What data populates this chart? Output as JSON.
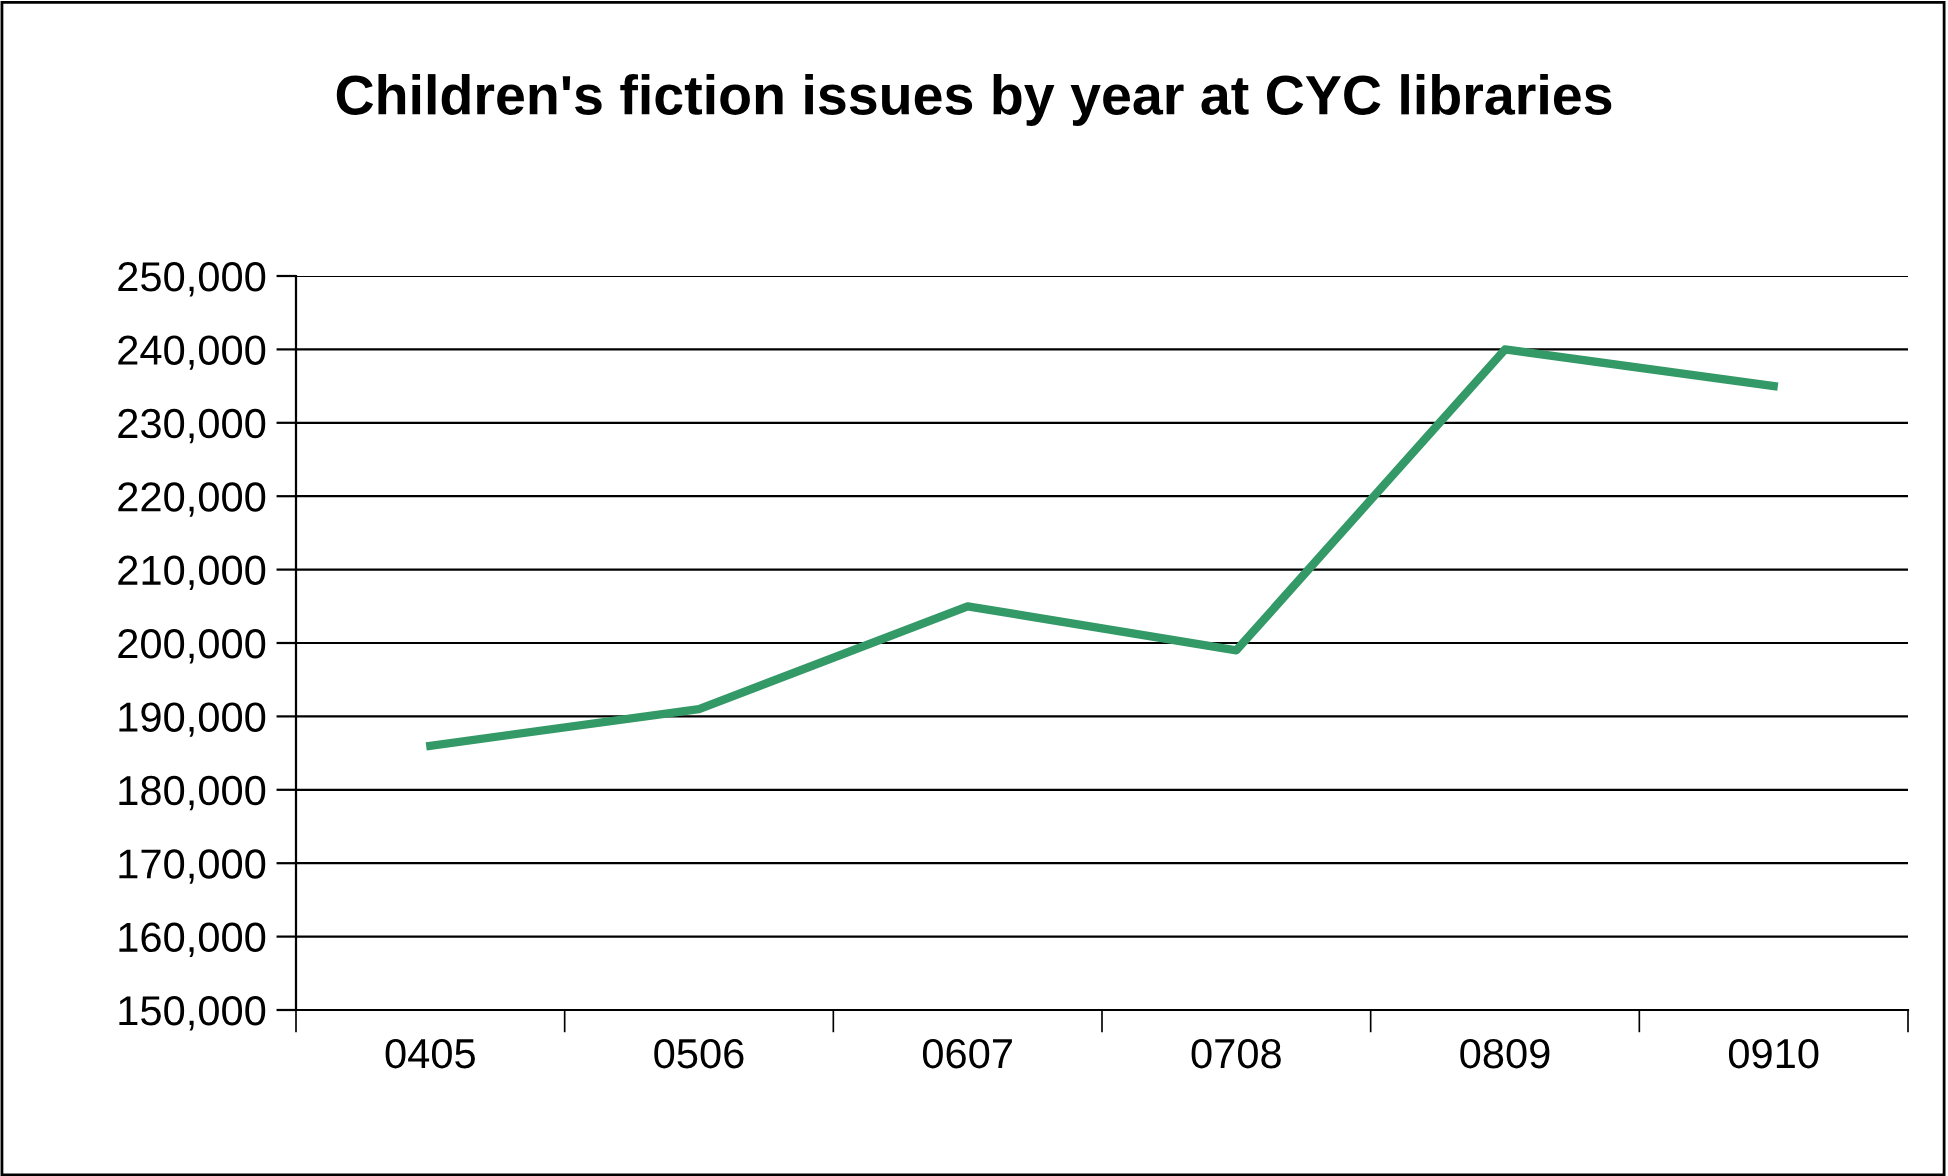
{
  "chart_data": {
    "type": "line",
    "title": "Children's fiction issues by year at CYC libraries",
    "categories": [
      "0405",
      "0506",
      "0607",
      "0708",
      "0809",
      "0910"
    ],
    "series": [
      {
        "color": "#339966",
        "values": [
          186000,
          191000,
          205000,
          199000,
          240000,
          235000
        ]
      }
    ],
    "ylim": [
      150000,
      250000
    ],
    "yticks": [
      {
        "value": 150000,
        "label": "150,000"
      },
      {
        "value": 160000,
        "label": "160,000"
      },
      {
        "value": 170000,
        "label": "170,000"
      },
      {
        "value": 180000,
        "label": "180,000"
      },
      {
        "value": 190000,
        "label": "190,000"
      },
      {
        "value": 200000,
        "label": "200,000"
      },
      {
        "value": 210000,
        "label": "210,000"
      },
      {
        "value": 220000,
        "label": "220,000"
      },
      {
        "value": 230000,
        "label": "230,000"
      },
      {
        "value": 240000,
        "label": "240,000"
      },
      {
        "value": 250000,
        "label": "250,000"
      }
    ],
    "grid": "y",
    "legend": false,
    "marker": "none",
    "line_style": "solid"
  }
}
